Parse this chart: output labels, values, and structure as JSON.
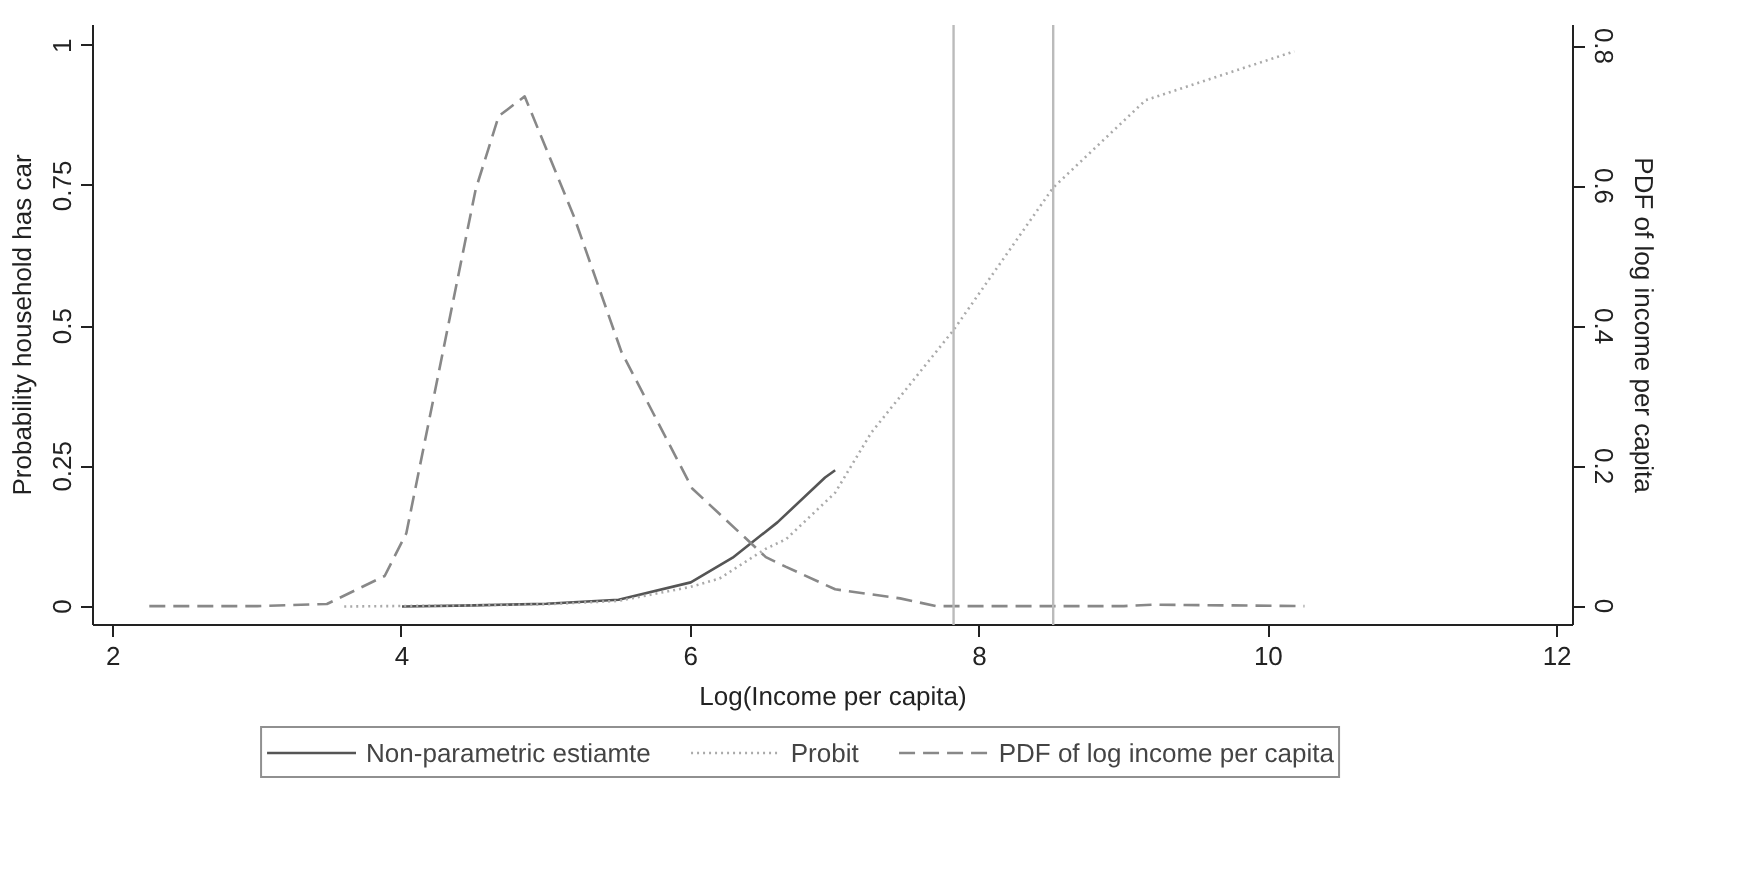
{
  "chart_data": {
    "type": "line",
    "xlabel": "Log(Income per capita)",
    "ylabel": "Probability household has car",
    "y2label": "PDF of log income per capita",
    "xlim": [
      1.86,
      12.11
    ],
    "xticks": [
      2,
      4,
      6,
      8,
      10,
      12
    ],
    "ylim": [
      -0.033,
      1.037
    ],
    "yticks": [
      0,
      0.25,
      0.5,
      0.75,
      1
    ],
    "y2lim": [
      -0.027,
      0.83
    ],
    "y2ticks": [
      0,
      0.2,
      0.4,
      0.6,
      0.8
    ],
    "grid": false,
    "legend": "bottom",
    "marker": "none",
    "ref_lines": [
      {
        "axis": "x",
        "value": 7.82,
        "color": "#bbbbbb"
      },
      {
        "axis": "x",
        "value": 8.51,
        "color": "#bbbbbb"
      }
    ],
    "series": [
      {
        "name": "Non-parametric estiamte",
        "color": "#555555",
        "line_style": "solid",
        "x": [
          4.0,
          4.5,
          5.0,
          5.5,
          6.0,
          6.29,
          6.6,
          6.93,
          7.0
        ],
        "values": [
          0,
          0.002,
          0.005,
          0.012,
          0.043,
          0.087,
          0.15,
          0.23,
          0.243
        ]
      },
      {
        "name": "Probit",
        "color": "#aaaaaa",
        "line_style": "dotted",
        "x": [
          3.6,
          4.5,
          5.0,
          5.5,
          6.0,
          6.2,
          6.52,
          6.66,
          7.0,
          7.25,
          7.82,
          8.51,
          9.15,
          10.18
        ],
        "values": [
          0,
          0.002,
          0.004,
          0.01,
          0.035,
          0.05,
          0.103,
          0.12,
          0.203,
          0.31,
          0.493,
          0.747,
          0.903,
          0.99
        ]
      },
      {
        "name": "PDF of log income per capita",
        "color": "#888888",
        "line_style": "dashed",
        "axis": "y2",
        "x": [
          2.25,
          3.0,
          3.48,
          3.88,
          4.03,
          4.51,
          4.67,
          4.85,
          5.19,
          5.52,
          6.01,
          6.52,
          6.66,
          7.0,
          7.45,
          7.7,
          8.5,
          9.0,
          9.2,
          10.25
        ],
        "values": [
          0,
          0,
          0.003,
          0.043,
          0.104,
          0.595,
          0.7,
          0.728,
          0.557,
          0.363,
          0.168,
          0.07,
          0.056,
          0.024,
          0.011,
          0,
          0,
          0,
          0.002,
          0
        ]
      }
    ]
  }
}
